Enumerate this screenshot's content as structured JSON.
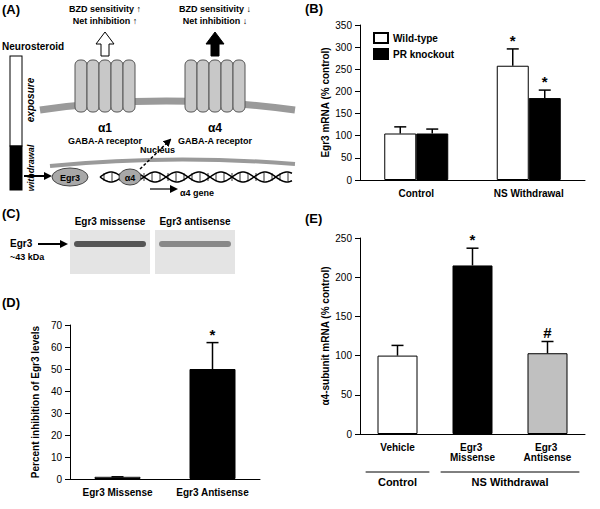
{
  "diagram": {
    "panel": "(A)",
    "neurosteroid": "Neurosteroid",
    "exposure": "exposure",
    "withdrawal": "withdrawal",
    "receptors": [
      {
        "effects": [
          "BZD sensitivity ↑",
          "Net inhibition ↑"
        ],
        "subunit": "α1",
        "name": "GABA-A receptor"
      },
      {
        "effects": [
          "BZD sensitivity ↓",
          "Net inhibition ↓"
        ],
        "subunit": "α4",
        "name": "GABA-A receptor"
      }
    ],
    "nucleus": "Nucleus",
    "factor": "Egr3",
    "product": "α4",
    "gene": "α4 gene"
  },
  "blot": {
    "panel": "(C)",
    "lanes": [
      "Egr3 missense",
      "Egr3 antisense"
    ],
    "band": "Egr3",
    "size": "~43 kDa"
  },
  "chart_data": [
    {
      "panel": "(B)",
      "type": "bar",
      "y_label": "Egr3 mRNA (% control)",
      "categories": [
        "Control",
        "NS Withdrawal"
      ],
      "series": [
        {
          "name": "Wild-type",
          "color": "#ffffff",
          "values": [
            105,
            258
          ],
          "errors": [
            15,
            38
          ],
          "significance": [
            null,
            "*"
          ]
        },
        {
          "name": "PR knockout",
          "color": "#000000",
          "values": [
            105,
            185
          ],
          "errors": [
            10,
            18
          ],
          "significance": [
            null,
            "*"
          ]
        }
      ],
      "ylim": [
        0,
        350
      ],
      "yticks": [
        0,
        50,
        100,
        150,
        200,
        250,
        300,
        350
      ],
      "legend": "upper left",
      "grid": false
    },
    {
      "panel": "(D)",
      "type": "bar",
      "y_label": "Percent inhibition of Egr3 levels",
      "categories": [
        "Egr3 Missense",
        "Egr3 Antisense"
      ],
      "values": [
        1,
        50
      ],
      "errors": [
        0,
        12
      ],
      "colors": [
        "#ffffff",
        "#000000"
      ],
      "significance": [
        null,
        "*"
      ],
      "ylim": [
        0,
        70
      ],
      "yticks": [
        0,
        10,
        20,
        30,
        40,
        50,
        60,
        70
      ],
      "grid": false
    },
    {
      "panel": "(E)",
      "type": "bar",
      "y_label": "α4-subunit mRNA (% control)",
      "categories": [
        "Vehicle",
        "Egr3 Missense",
        "Egr3 Antisense"
      ],
      "values": [
        100,
        215,
        103
      ],
      "errors": [
        13,
        22,
        15
      ],
      "colors": [
        "#ffffff",
        "#000000",
        "#c0c0c0"
      ],
      "significance": [
        null,
        "*",
        "#"
      ],
      "groups": [
        {
          "label": "Control",
          "categories": [
            "Vehicle"
          ]
        },
        {
          "label": "NS Withdrawal",
          "categories": [
            "Egr3 Missense",
            "Egr3 Antisense"
          ]
        }
      ],
      "ylim": [
        0,
        250
      ],
      "yticks": [
        0,
        50,
        100,
        150,
        200,
        250
      ],
      "grid": false
    }
  ]
}
